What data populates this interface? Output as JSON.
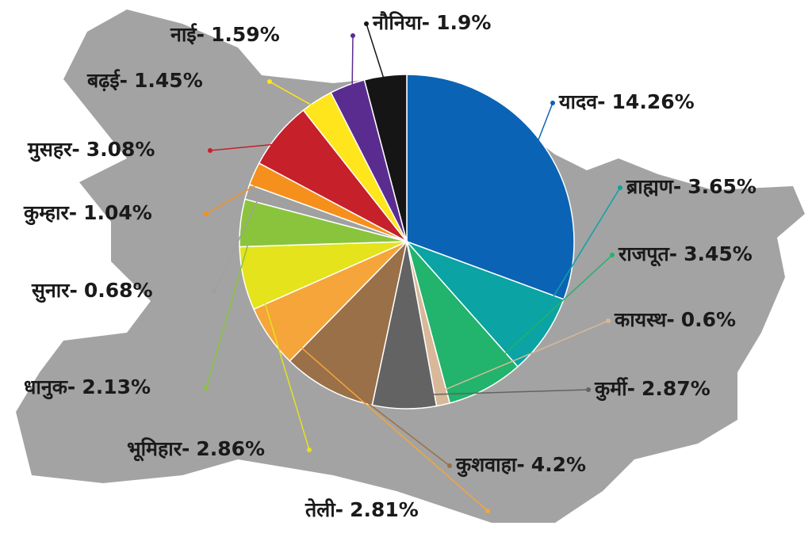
{
  "chart_data": {
    "type": "pie",
    "categories": [
      "यादव-",
      "ब्राह्मण-",
      "राजपूत-",
      "कायस्थ-",
      "कुर्मी-",
      "कुशवाहा-",
      "तेली-",
      "भूमिहार-",
      "धानुक-",
      "सुनार-",
      "कुम्हार-",
      "मुसहर-",
      "बढ़ई-",
      "नाई-",
      "नौनिया-"
    ],
    "values": [
      14.26,
      3.65,
      3.45,
      0.6,
      2.87,
      4.2,
      2.81,
      2.86,
      2.13,
      0.68,
      1.04,
      3.08,
      1.45,
      1.59,
      1.9
    ],
    "value_labels": [
      "14.26%",
      "3.65%",
      "3.45%",
      "0.6%",
      "2.87%",
      "4.2%",
      "2.81%",
      "2.86%",
      "2.13%",
      "0.68%",
      "1.04%",
      "3.08%",
      "1.45%",
      "1.59%",
      "1.9%"
    ],
    "colors": [
      "#0b63b5",
      "#0ba3a3",
      "#22b36c",
      "#d8b898",
      "#636363",
      "#9a7048",
      "#f5a53a",
      "#e4e31c",
      "#8ac43c",
      "#a0a0a0",
      "#f5901c",
      "#c6202b",
      "#ffe61c",
      "#5b2c90",
      "#151515"
    ]
  }
}
